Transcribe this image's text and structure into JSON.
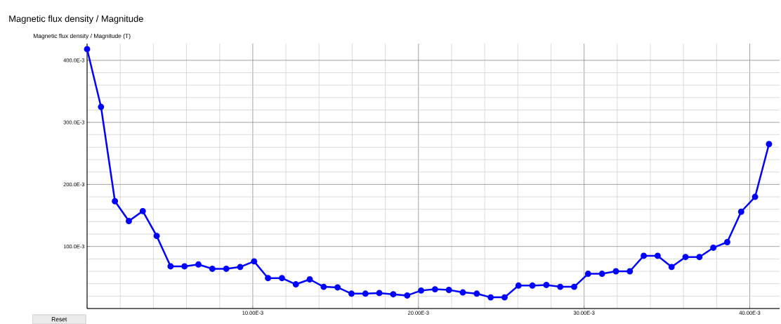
{
  "chart_data": {
    "type": "line",
    "title": "Magnetic flux density / Magnitude",
    "ylabel": "Magnetic flux density / Magnitude (T)",
    "x": [
      0,
      0.00084,
      0.00168,
      0.00252,
      0.00336,
      0.0042,
      0.00504,
      0.00588,
      0.00672,
      0.00756,
      0.0084,
      0.00924,
      0.01008,
      0.01092,
      0.01176,
      0.0126,
      0.01344,
      0.01428,
      0.01512,
      0.01596,
      0.0168,
      0.01764,
      0.01848,
      0.01932,
      0.02016,
      0.021,
      0.02184,
      0.02268,
      0.02352,
      0.02436,
      0.0252,
      0.02604,
      0.02688,
      0.02772,
      0.02856,
      0.0294,
      0.03024,
      0.03108,
      0.03192,
      0.03276,
      0.0336,
      0.03444,
      0.03528,
      0.03612,
      0.03696,
      0.0378,
      0.03864,
      0.03948,
      0.04032,
      0.04116
    ],
    "series": [
      {
        "color": "#0000ff",
        "values": [
          0.418,
          0.325,
          0.173,
          0.141,
          0.157,
          0.117,
          0.068,
          0.068,
          0.071,
          0.064,
          0.064,
          0.067,
          0.076,
          0.049,
          0.049,
          0.039,
          0.047,
          0.035,
          0.034,
          0.024,
          0.024,
          0.025,
          0.023,
          0.021,
          0.029,
          0.031,
          0.03,
          0.026,
          0.024,
          0.018,
          0.018,
          0.037,
          0.037,
          0.038,
          0.035,
          0.035,
          0.056,
          0.056,
          0.06,
          0.06,
          0.085,
          0.085,
          0.067,
          0.083,
          0.083,
          0.098,
          0.107,
          0.156,
          0.18,
          0.265
        ]
      }
    ],
    "xlim": [
      0,
      0.0418
    ],
    "ylim": [
      0,
      0.427
    ],
    "xticks": [
      {
        "value": 0,
        "label": null
      },
      {
        "value": 0.01,
        "label": "10.00E-3"
      },
      {
        "value": 0.02,
        "label": "20.00E-3"
      },
      {
        "value": 0.03,
        "label": "30.00E-3"
      },
      {
        "value": 0.04,
        "label": "40.00E-3"
      }
    ],
    "yticks": [
      {
        "value": 0,
        "label": null
      },
      {
        "value": 0.1,
        "label": "100.0E-3"
      },
      {
        "value": 0.2,
        "label": "200.0E-3"
      },
      {
        "value": 0.3,
        "label": "300.0E-3"
      },
      {
        "value": 0.4,
        "label": "400.0E-3"
      }
    ],
    "grid": true,
    "marker": "circle",
    "line_style": "solid",
    "annotations": [
      "Reset"
    ]
  }
}
